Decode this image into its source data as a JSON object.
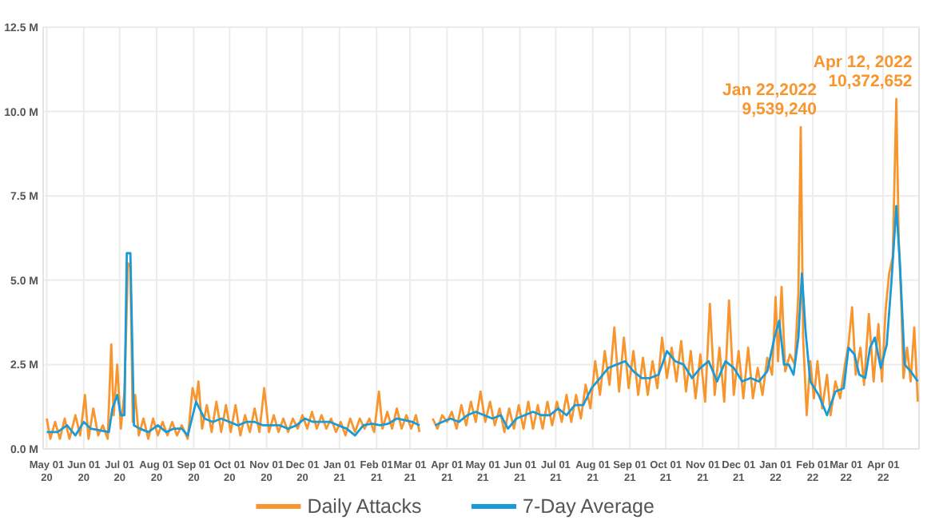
{
  "chart_data": {
    "type": "line",
    "legend": "bottom",
    "grid": true,
    "marker": "none",
    "line_style": "solid",
    "xlim": [
      "2020-04-28",
      "2022-05-01"
    ],
    "ylim": [
      0,
      12.5
    ],
    "yticks": [
      {
        "value": 0,
        "label": "0.0 M"
      },
      {
        "value": 2.5,
        "label": "2.5 M"
      },
      {
        "value": 5,
        "label": "5.0 M"
      },
      {
        "value": 7.5,
        "label": "7.5 M"
      },
      {
        "value": 10,
        "label": "10.0 M"
      },
      {
        "value": 12.5,
        "label": "12.5 M"
      }
    ],
    "xticks": [
      {
        "value": "2020-05-01",
        "label": "May 01\n20"
      },
      {
        "value": "2020-06-01",
        "label": "Jun 01\n20"
      },
      {
        "value": "2020-07-01",
        "label": "Jul 01\n20"
      },
      {
        "value": "2020-08-01",
        "label": "Aug 01\n20"
      },
      {
        "value": "2020-09-01",
        "label": "Sep 01\n20"
      },
      {
        "value": "2020-10-01",
        "label": "Oct 01\n20"
      },
      {
        "value": "2020-11-01",
        "label": "Nov 01\n20"
      },
      {
        "value": "2020-12-01",
        "label": "Dec 01\n20"
      },
      {
        "value": "2021-01-01",
        "label": "Jan 01\n21"
      },
      {
        "value": "2021-02-01",
        "label": "Feb 01\n21"
      },
      {
        "value": "2021-03-01",
        "label": "Mar 01\n21"
      },
      {
        "value": "2021-04-01",
        "label": "Apr 01\n21"
      },
      {
        "value": "2021-05-01",
        "label": "May 01\n21"
      },
      {
        "value": "2021-06-01",
        "label": "Jun 01\n21"
      },
      {
        "value": "2021-07-01",
        "label": "Jul 01\n21"
      },
      {
        "value": "2021-08-01",
        "label": "Aug 01\n21"
      },
      {
        "value": "2021-09-01",
        "label": "Sep 01\n21"
      },
      {
        "value": "2021-10-01",
        "label": "Oct 01\n21"
      },
      {
        "value": "2021-11-01",
        "label": "Nov 01\n21"
      },
      {
        "value": "2021-12-01",
        "label": "Dec 01\n21"
      },
      {
        "value": "2022-01-01",
        "label": "Jan 01\n22"
      },
      {
        "value": "2022-02-01",
        "label": "Feb 01\n22"
      },
      {
        "value": "2022-03-01",
        "label": "Mar 01\n22"
      },
      {
        "value": "2022-04-01",
        "label": "Apr 01\n22"
      }
    ],
    "annotations": [
      {
        "text": "Jan 22,2022\n9,539,240",
        "x": "2022-01-22",
        "y": 9.54
      },
      {
        "text": "Apr 12, 2022\n10,372,652",
        "x": "2022-04-12",
        "y": 10.37
      }
    ],
    "series": [
      {
        "name": "Daily Attacks",
        "color": "#f7962f",
        "x": [
          "2020-05-01",
          "2020-05-04",
          "2020-05-08",
          "2020-05-12",
          "2020-05-16",
          "2020-05-20",
          "2020-05-25",
          "2020-05-29",
          "2020-06-02",
          "2020-06-05",
          "2020-06-09",
          "2020-06-13",
          "2020-06-17",
          "2020-06-21",
          "2020-06-24",
          "2020-06-26",
          "2020-06-29",
          "2020-07-02",
          "2020-07-05",
          "2020-07-08",
          "2020-07-10",
          "2020-07-12",
          "2020-07-14",
          "2020-07-17",
          "2020-07-21",
          "2020-07-25",
          "2020-07-29",
          "2020-08-02",
          "2020-08-06",
          "2020-08-10",
          "2020-08-14",
          "2020-08-18",
          "2020-08-22",
          "2020-08-27",
          "2020-08-31",
          "2020-09-03",
          "2020-09-05",
          "2020-09-08",
          "2020-09-12",
          "2020-09-16",
          "2020-09-20",
          "2020-09-24",
          "2020-09-28",
          "2020-10-02",
          "2020-10-06",
          "2020-10-10",
          "2020-10-14",
          "2020-10-18",
          "2020-10-22",
          "2020-10-26",
          "2020-10-30",
          "2020-11-03",
          "2020-11-07",
          "2020-11-11",
          "2020-11-15",
          "2020-11-19",
          "2020-11-23",
          "2020-11-27",
          "2020-12-01",
          "2020-12-05",
          "2020-12-09",
          "2020-12-13",
          "2020-12-17",
          "2020-12-21",
          "2020-12-25",
          "2020-12-29",
          "2021-01-02",
          "2021-01-06",
          "2021-01-10",
          "2021-01-14",
          "2021-01-18",
          "2021-01-22",
          "2021-01-26",
          "2021-01-30",
          "2021-02-03",
          "2021-02-06",
          "2021-02-10",
          "2021-02-14",
          "2021-02-18",
          "2021-02-22",
          "2021-02-26",
          "2021-03-02",
          "2021-03-06",
          "2021-03-09",
          "2021-03-14",
          "2021-03-20",
          "2021-03-24",
          "2021-03-28",
          "2021-04-01",
          "2021-04-05",
          "2021-04-09",
          "2021-04-13",
          "2021-04-17",
          "2021-04-21",
          "2021-04-25",
          "2021-04-29",
          "2021-05-03",
          "2021-05-07",
          "2021-05-11",
          "2021-05-15",
          "2021-05-19",
          "2021-05-23",
          "2021-05-27",
          "2021-05-31",
          "2021-06-04",
          "2021-06-08",
          "2021-06-12",
          "2021-06-16",
          "2021-06-20",
          "2021-06-24",
          "2021-06-28",
          "2021-07-02",
          "2021-07-06",
          "2021-07-10",
          "2021-07-14",
          "2021-07-18",
          "2021-07-22",
          "2021-07-26",
          "2021-07-30",
          "2021-08-03",
          "2021-08-07",
          "2021-08-11",
          "2021-08-15",
          "2021-08-19",
          "2021-08-23",
          "2021-08-27",
          "2021-08-31",
          "2021-09-04",
          "2021-09-08",
          "2021-09-12",
          "2021-09-16",
          "2021-09-20",
          "2021-09-24",
          "2021-09-28",
          "2021-10-02",
          "2021-10-06",
          "2021-10-10",
          "2021-10-14",
          "2021-10-18",
          "2021-10-22",
          "2021-10-26",
          "2021-10-30",
          "2021-11-03",
          "2021-11-07",
          "2021-11-11",
          "2021-11-15",
          "2021-11-19",
          "2021-11-23",
          "2021-11-27",
          "2021-12-01",
          "2021-12-05",
          "2021-12-09",
          "2021-12-13",
          "2021-12-17",
          "2021-12-21",
          "2021-12-25",
          "2021-12-29",
          "2022-01-01",
          "2022-01-03",
          "2022-01-06",
          "2022-01-09",
          "2022-01-13",
          "2022-01-17",
          "2022-01-20",
          "2022-01-22",
          "2022-01-24",
          "2022-01-27",
          "2022-01-30",
          "2022-02-02",
          "2022-02-05",
          "2022-02-09",
          "2022-02-13",
          "2022-02-16",
          "2022-02-20",
          "2022-02-24",
          "2022-02-28",
          "2022-03-03",
          "2022-03-06",
          "2022-03-09",
          "2022-03-13",
          "2022-03-16",
          "2022-03-20",
          "2022-03-24",
          "2022-03-28",
          "2022-03-31",
          "2022-04-03",
          "2022-04-06",
          "2022-04-09",
          "2022-04-12",
          "2022-04-14",
          "2022-04-16",
          "2022-04-18",
          "2022-04-21",
          "2022-04-24",
          "2022-04-27",
          "2022-04-30"
        ],
        "values": [
          0.9,
          0.3,
          0.8,
          0.3,
          0.9,
          0.3,
          1.0,
          0.4,
          1.6,
          0.3,
          1.2,
          0.4,
          0.7,
          0.3,
          3.1,
          1.0,
          2.5,
          0.6,
          1.7,
          5.5,
          5.4,
          0.8,
          1.6,
          0.4,
          0.9,
          0.3,
          0.9,
          0.4,
          0.8,
          0.4,
          0.8,
          0.4,
          0.7,
          0.3,
          1.8,
          1.4,
          2.0,
          0.6,
          1.3,
          0.5,
          1.4,
          0.5,
          1.3,
          0.5,
          1.3,
          0.4,
          1.0,
          0.5,
          1.2,
          0.5,
          1.8,
          0.5,
          1.0,
          0.5,
          0.9,
          0.5,
          0.9,
          0.6,
          1.0,
          0.6,
          1.1,
          0.6,
          1.0,
          0.6,
          0.9,
          0.5,
          0.8,
          0.4,
          0.9,
          0.5,
          0.9,
          0.6,
          0.9,
          0.5,
          1.7,
          0.6,
          1.1,
          0.6,
          1.2,
          0.6,
          1.0,
          0.6,
          1.0,
          0.5,
          null,
          0.9,
          0.6,
          1.0,
          0.8,
          1.1,
          0.6,
          1.3,
          0.7,
          1.4,
          0.8,
          1.7,
          0.8,
          1.4,
          0.7,
          1.2,
          0.5,
          1.2,
          0.6,
          1.3,
          0.6,
          1.4,
          0.6,
          1.3,
          0.6,
          1.4,
          0.7,
          1.4,
          0.8,
          1.6,
          0.8,
          1.6,
          0.9,
          1.9,
          1.2,
          2.6,
          1.6,
          2.9,
          1.9,
          3.6,
          1.7,
          3.3,
          1.8,
          2.9,
          1.6,
          2.7,
          1.6,
          2.6,
          1.8,
          3.3,
          2.1,
          3.0,
          2.0,
          3.2,
          1.7,
          2.9,
          1.5,
          2.8,
          1.4,
          4.3,
          1.6,
          3.0,
          1.4,
          4.4,
          1.6,
          2.9,
          1.5,
          3.0,
          1.5,
          2.4,
          1.6,
          2.7,
          2.2,
          4.5,
          2.6,
          4.8,
          2.3,
          2.8,
          2.5,
          4.6,
          9.54,
          3.3,
          1.0,
          2.6,
          1.5,
          2.6,
          1.2,
          2.2,
          1.0,
          2.0,
          1.5,
          2.5,
          3.1,
          4.2,
          2.2,
          3.0,
          1.9,
          4.0,
          2.0,
          3.7,
          2.0,
          4.1,
          5.2,
          5.7,
          10.37,
          6.2,
          4.5,
          2.1,
          3.0,
          2.0,
          3.6,
          1.4
        ]
      },
      {
        "name": "7-Day Average",
        "color": "#1a9ad6",
        "x": [
          "2020-05-01",
          "2020-05-10",
          "2020-05-18",
          "2020-05-25",
          "2020-06-01",
          "2020-06-07",
          "2020-06-15",
          "2020-06-22",
          "2020-06-25",
          "2020-06-29",
          "2020-07-02",
          "2020-07-05",
          "2020-07-07",
          "2020-07-10",
          "2020-07-13",
          "2020-07-18",
          "2020-07-25",
          "2020-08-02",
          "2020-08-09",
          "2020-08-15",
          "2020-08-22",
          "2020-08-27",
          "2020-09-03",
          "2020-09-10",
          "2020-09-17",
          "2020-09-24",
          "2020-10-01",
          "2020-10-08",
          "2020-10-15",
          "2020-10-22",
          "2020-10-29",
          "2020-11-05",
          "2020-11-12",
          "2020-11-19",
          "2020-11-26",
          "2020-12-03",
          "2020-12-10",
          "2020-12-17",
          "2020-12-24",
          "2020-12-31",
          "2021-01-07",
          "2021-01-14",
          "2021-01-21",
          "2021-01-28",
          "2021-02-04",
          "2021-02-11",
          "2021-02-18",
          "2021-02-25",
          "2021-03-03",
          "2021-03-09",
          "2021-03-14",
          "2021-03-22",
          "2021-03-28",
          "2021-04-04",
          "2021-04-11",
          "2021-04-18",
          "2021-04-25",
          "2021-05-02",
          "2021-05-09",
          "2021-05-16",
          "2021-05-22",
          "2021-05-29",
          "2021-06-05",
          "2021-06-12",
          "2021-06-19",
          "2021-06-26",
          "2021-07-03",
          "2021-07-10",
          "2021-07-17",
          "2021-07-24",
          "2021-07-31",
          "2021-08-07",
          "2021-08-14",
          "2021-08-21",
          "2021-08-28",
          "2021-09-04",
          "2021-09-11",
          "2021-09-18",
          "2021-09-25",
          "2021-10-02",
          "2021-10-09",
          "2021-10-16",
          "2021-10-23",
          "2021-10-30",
          "2021-11-06",
          "2021-11-13",
          "2021-11-20",
          "2021-11-27",
          "2021-12-04",
          "2021-12-11",
          "2021-12-18",
          "2021-12-25",
          "2021-12-31",
          "2022-01-04",
          "2022-01-08",
          "2022-01-12",
          "2022-01-16",
          "2022-01-20",
          "2022-01-23",
          "2022-01-26",
          "2022-01-30",
          "2022-02-06",
          "2022-02-13",
          "2022-02-20",
          "2022-02-27",
          "2022-03-03",
          "2022-03-08",
          "2022-03-12",
          "2022-03-17",
          "2022-03-21",
          "2022-03-25",
          "2022-03-30",
          "2022-04-04",
          "2022-04-08",
          "2022-04-12",
          "2022-04-15",
          "2022-04-19",
          "2022-04-24",
          "2022-04-30"
        ],
        "values": [
          0.5,
          0.5,
          0.7,
          0.4,
          0.8,
          0.6,
          0.55,
          0.5,
          1.2,
          1.6,
          1.0,
          1.0,
          5.8,
          5.8,
          0.7,
          0.6,
          0.5,
          0.7,
          0.5,
          0.6,
          0.6,
          0.4,
          1.4,
          0.9,
          0.8,
          0.9,
          0.8,
          0.7,
          0.8,
          0.8,
          0.7,
          0.7,
          0.7,
          0.6,
          0.7,
          0.9,
          0.8,
          0.8,
          0.8,
          0.7,
          0.6,
          0.4,
          0.7,
          0.75,
          0.7,
          0.75,
          0.9,
          0.85,
          0.8,
          0.7,
          null,
          0.7,
          0.8,
          0.9,
          0.8,
          1.0,
          1.1,
          1.0,
          0.9,
          1.0,
          0.6,
          0.9,
          1.0,
          1.1,
          1.0,
          1.0,
          1.2,
          1.0,
          1.3,
          1.3,
          1.8,
          2.1,
          2.4,
          2.5,
          2.6,
          2.3,
          2.1,
          2.1,
          2.2,
          2.9,
          2.6,
          2.5,
          2.1,
          2.4,
          2.6,
          2.0,
          2.6,
          2.4,
          2.0,
          2.1,
          2.0,
          2.3,
          3.3,
          3.8,
          2.5,
          2.5,
          2.2,
          3.3,
          5.2,
          3.5,
          2.0,
          1.6,
          1.0,
          1.7,
          1.8,
          3.0,
          2.8,
          2.2,
          2.1,
          3.0,
          3.3,
          2.4,
          3.1,
          5.0,
          7.2,
          5.5,
          2.5,
          2.3,
          2.0
        ]
      }
    ]
  }
}
